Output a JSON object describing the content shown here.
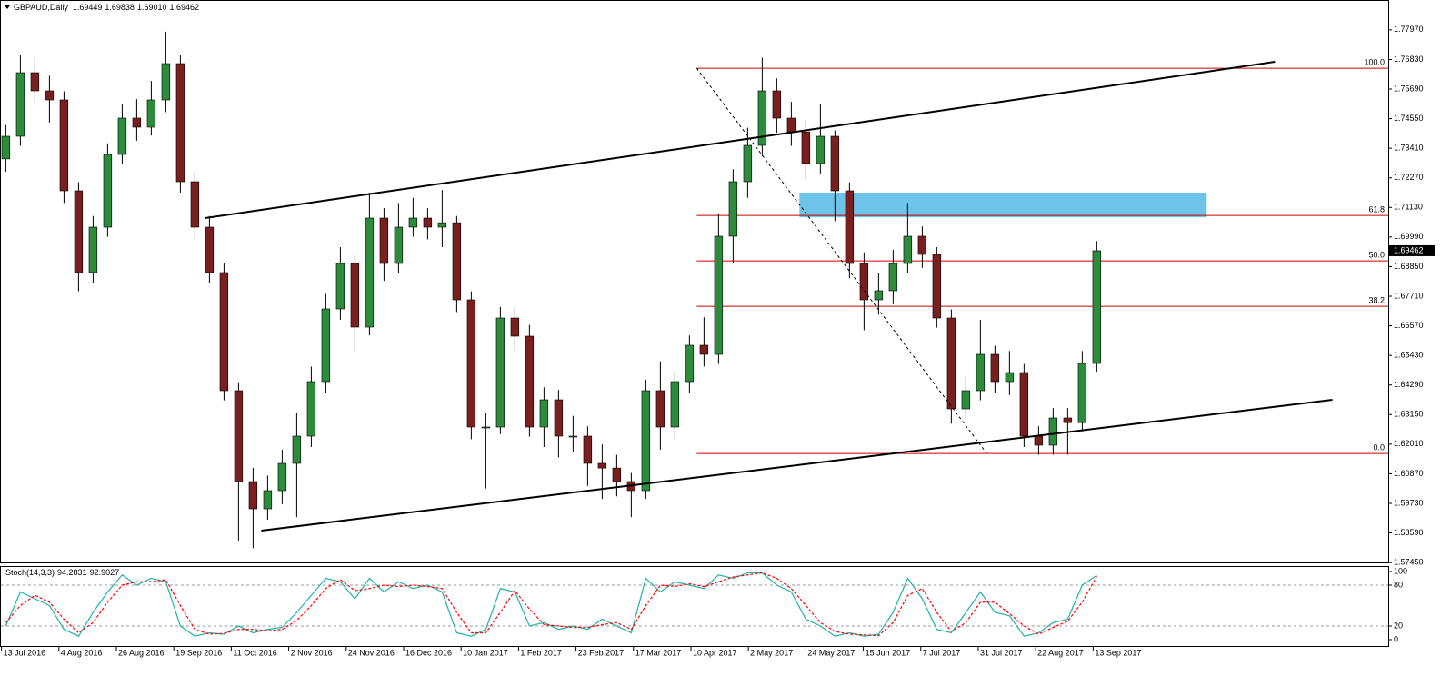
{
  "chart_data": [
    {
      "type": "candlestick",
      "title": "GBPAUD,Daily",
      "header_values": [
        "1.69449",
        "1.69838",
        "1.69010",
        "1.69462"
      ],
      "up_color": "#2d8b3c",
      "down_color": "#7a1f1f",
      "candles": [
        [
          1.73,
          1.743,
          1.725,
          1.7387
        ],
        [
          1.7387,
          1.77,
          1.735,
          1.7632
        ],
        [
          1.7632,
          1.769,
          1.751,
          1.7562
        ],
        [
          1.7562,
          1.762,
          1.744,
          1.7527
        ],
        [
          1.7527,
          1.756,
          1.713,
          1.7177
        ],
        [
          1.7177,
          1.721,
          1.679,
          1.6862
        ],
        [
          1.6862,
          1.708,
          1.682,
          1.7037
        ],
        [
          1.7037,
          1.736,
          1.7,
          1.7317
        ],
        [
          1.7317,
          1.751,
          1.728,
          1.7457
        ],
        [
          1.7457,
          1.753,
          1.737,
          1.7422
        ],
        [
          1.7422,
          1.76,
          1.739,
          1.7527
        ],
        [
          1.7527,
          1.779,
          1.748,
          1.7667
        ],
        [
          1.7667,
          1.77,
          1.717,
          1.7212
        ],
        [
          1.7212,
          1.725,
          1.699,
          1.7037
        ],
        [
          1.7037,
          1.708,
          1.682,
          1.6862
        ],
        [
          1.6862,
          1.69,
          1.637,
          1.6407
        ],
        [
          1.6407,
          1.644,
          1.583,
          1.6057
        ],
        [
          1.6057,
          1.611,
          1.58,
          1.5952
        ],
        [
          1.5952,
          1.608,
          1.591,
          1.6022
        ],
        [
          1.6022,
          1.618,
          1.597,
          1.6127
        ],
        [
          1.6127,
          1.632,
          1.592,
          1.6232
        ],
        [
          1.6232,
          1.65,
          1.619,
          1.6442
        ],
        [
          1.6442,
          1.678,
          1.64,
          1.6722
        ],
        [
          1.6722,
          1.696,
          1.668,
          1.6897
        ],
        [
          1.6897,
          1.693,
          1.656,
          1.6652
        ],
        [
          1.6652,
          1.717,
          1.662,
          1.7072
        ],
        [
          1.7072,
          1.711,
          1.683,
          1.6897
        ],
        [
          1.6897,
          1.713,
          1.686,
          1.7037
        ],
        [
          1.7037,
          1.715,
          1.7,
          1.7072
        ],
        [
          1.7072,
          1.711,
          1.699,
          1.7037
        ],
        [
          1.7037,
          1.718,
          1.696,
          1.7054
        ],
        [
          1.7054,
          1.708,
          1.671,
          1.6757
        ],
        [
          1.6757,
          1.679,
          1.622,
          1.6267
        ],
        [
          1.6267,
          1.632,
          1.603,
          1.6267
        ],
        [
          1.6267,
          1.673,
          1.624,
          1.6687
        ],
        [
          1.6687,
          1.673,
          1.656,
          1.6617
        ],
        [
          1.6617,
          1.666,
          1.623,
          1.6267
        ],
        [
          1.6267,
          1.642,
          1.619,
          1.6372
        ],
        [
          1.6372,
          1.641,
          1.615,
          1.6232
        ],
        [
          1.6232,
          1.631,
          1.617,
          1.6232
        ],
        [
          1.6232,
          1.627,
          1.604,
          1.6127
        ],
        [
          1.6127,
          1.62,
          1.599,
          1.6109
        ],
        [
          1.6109,
          1.616,
          1.6,
          1.6057
        ],
        [
          1.6057,
          1.609,
          1.592,
          1.6022
        ],
        [
          1.6022,
          1.645,
          1.599,
          1.6407
        ],
        [
          1.6407,
          1.652,
          1.618,
          1.6267
        ],
        [
          1.6267,
          1.648,
          1.622,
          1.6442
        ],
        [
          1.6442,
          1.662,
          1.64,
          1.6582
        ],
        [
          1.6582,
          1.669,
          1.65,
          1.6547
        ],
        [
          1.6547,
          1.709,
          1.651,
          1.7002
        ],
        [
          1.7002,
          1.726,
          1.69,
          1.7212
        ],
        [
          1.7212,
          1.742,
          1.715,
          1.7352
        ],
        [
          1.7352,
          1.769,
          1.731,
          1.7562
        ],
        [
          1.7562,
          1.761,
          1.74,
          1.7457
        ],
        [
          1.7457,
          1.752,
          1.735,
          1.7404
        ],
        [
          1.7404,
          1.745,
          1.722,
          1.7282
        ],
        [
          1.7282,
          1.751,
          1.724,
          1.7387
        ],
        [
          1.7387,
          1.741,
          1.706,
          1.7177
        ],
        [
          1.7177,
          1.721,
          1.684,
          1.6897
        ],
        [
          1.6897,
          1.694,
          1.664,
          1.6757
        ],
        [
          1.6757,
          1.686,
          1.67,
          1.6792
        ],
        [
          1.6792,
          1.695,
          1.674,
          1.6897
        ],
        [
          1.6897,
          1.713,
          1.686,
          1.7002
        ],
        [
          1.7002,
          1.704,
          1.688,
          1.6932
        ],
        [
          1.6932,
          1.696,
          1.665,
          1.6687
        ],
        [
          1.6687,
          1.672,
          1.628,
          1.6337
        ],
        [
          1.6337,
          1.646,
          1.63,
          1.6407
        ],
        [
          1.6407,
          1.668,
          1.637,
          1.6547
        ],
        [
          1.6547,
          1.658,
          1.64,
          1.6442
        ],
        [
          1.6442,
          1.656,
          1.639,
          1.6477
        ],
        [
          1.6477,
          1.651,
          1.619,
          1.6232
        ],
        [
          1.6232,
          1.627,
          1.616,
          1.6197
        ],
        [
          1.6197,
          1.634,
          1.616,
          1.6302
        ],
        [
          1.6302,
          1.634,
          1.616,
          1.6284
        ],
        [
          1.6284,
          1.656,
          1.625,
          1.6512
        ],
        [
          1.6512,
          1.69838,
          1.648,
          1.69462
        ]
      ],
      "xlim": [
        -0.4,
        95.04
      ],
      "ylim": [
        1.5742,
        1.7912
      ],
      "yticks": [
        {
          "value": 1.5745,
          "label": "1.57450"
        },
        {
          "value": 1.5859,
          "label": "1.58590"
        },
        {
          "value": 1.5973,
          "label": "1.59730"
        },
        {
          "value": 1.6087,
          "label": "1.60870"
        },
        {
          "value": 1.6201,
          "label": "1.62010"
        },
        {
          "value": 1.6315,
          "label": "1.63150"
        },
        {
          "value": 1.6429,
          "label": "1.64290"
        },
        {
          "value": 1.6543,
          "label": "1.65430"
        },
        {
          "value": 1.6657,
          "label": "1.66570"
        },
        {
          "value": 1.6771,
          "label": "1.67710"
        },
        {
          "value": 1.6885,
          "label": "1.68850"
        },
        {
          "value": 1.6999,
          "label": "1.69990"
        },
        {
          "value": 1.7113,
          "label": "1.71130"
        },
        {
          "value": 1.7227,
          "label": "1.72270"
        },
        {
          "value": 1.7341,
          "label": "1.73410"
        },
        {
          "value": 1.7455,
          "label": "1.74550"
        },
        {
          "value": 1.7569,
          "label": "1.75690"
        },
        {
          "value": 1.7683,
          "label": "1.76830"
        },
        {
          "value": 1.7797,
          "label": "1.77970"
        }
      ],
      "xticks": [
        {
          "value": -0.3,
          "label": "13 Jul 2016"
        },
        {
          "value": 3.65,
          "label": "4 Aug 2016"
        },
        {
          "value": 7.6,
          "label": "26 Aug 2016"
        },
        {
          "value": 11.55,
          "label": "19 Sep 2016"
        },
        {
          "value": 15.5,
          "label": "11 Oct 2016"
        },
        {
          "value": 19.45,
          "label": "2 Nov 2016"
        },
        {
          "value": 23.4,
          "label": "24 Nov 2016"
        },
        {
          "value": 27.35,
          "label": "16 Dec 2016"
        },
        {
          "value": 31.3,
          "label": "10 Jan 2017"
        },
        {
          "value": 35.25,
          "label": "1 Feb 2017"
        },
        {
          "value": 39.2,
          "label": "23 Feb 2017"
        },
        {
          "value": 43.15,
          "label": "17 Mar 2017"
        },
        {
          "value": 47.1,
          "label": "10 Apr 2017"
        },
        {
          "value": 51.05,
          "label": "2 May 2017"
        },
        {
          "value": 55.0,
          "label": "24 May 2017"
        },
        {
          "value": 58.95,
          "label": "15 Jun 2017"
        },
        {
          "value": 62.9,
          "label": "7 Jul 2017"
        },
        {
          "value": 66.85,
          "label": "31 Jul 2017"
        },
        {
          "value": 70.8,
          "label": "22 Aug 2017"
        },
        {
          "value": 74.75,
          "label": "13 Sep 2017"
        }
      ],
      "last_price": {
        "value": 1.69462,
        "label": "1.69462"
      },
      "fibonacci": {
        "color": "#cc0000",
        "x_start": 47.5,
        "levels": [
          {
            "label": "100.0",
            "price": 1.7649
          },
          {
            "label": "61.8",
            "price": 1.7082
          },
          {
            "label": "50.0",
            "price": 1.6907
          },
          {
            "label": "38.2",
            "price": 1.6732
          },
          {
            "label": "0.0",
            "price": 1.6165
          }
        ]
      },
      "trendlines": [
        {
          "x": [
            13.7,
            87.25
          ],
          "y": [
            1.7072,
            1.7674
          ]
        },
        {
          "x": [
            17.56,
            91.2
          ],
          "y": [
            1.5868,
            1.6372
          ]
        }
      ],
      "diagonal": {
        "x": [
          47.5,
          67.44
        ],
        "y": [
          1.7649,
          1.6165
        ]
      },
      "zone": {
        "color": "#6ec3e8",
        "x": [
          54.56,
          82.56
        ],
        "y": [
          1.717,
          1.7075
        ]
      }
    },
    {
      "type": "line",
      "title": "Stoch(14,3,3)",
      "ylim": [
        -10.7,
        108
      ],
      "yticks": [
        0,
        20,
        80,
        100
      ],
      "levels": [
        20,
        80
      ],
      "series": [
        {
          "color": "#20b2aa",
          "values": [
            20,
            70,
            60,
            50,
            15,
            5,
            40,
            70,
            95,
            80,
            90,
            85,
            20,
            5,
            10,
            8,
            20,
            10,
            15,
            18,
            40,
            65,
            90,
            85,
            60,
            90,
            70,
            85,
            75,
            80,
            70,
            10,
            5,
            15,
            75,
            70,
            20,
            25,
            15,
            20,
            15,
            30,
            20,
            10,
            90,
            70,
            85,
            80,
            75,
            95,
            90,
            98,
            98,
            80,
            70,
            30,
            20,
            5,
            10,
            5,
            8,
            40,
            90,
            60,
            15,
            10,
            40,
            70,
            40,
            35,
            5,
            10,
            25,
            30,
            80,
            94.2831
          ]
        },
        {
          "color": "#ff0000",
          "dashed": true,
          "values": [
            25,
            50,
            65,
            55,
            30,
            10,
            25,
            55,
            80,
            85,
            85,
            88,
            50,
            15,
            8,
            9,
            15,
            15,
            13,
            15,
            28,
            50,
            75,
            88,
            72,
            75,
            80,
            78,
            80,
            78,
            75,
            40,
            10,
            10,
            40,
            72,
            45,
            22,
            20,
            18,
            18,
            22,
            25,
            15,
            50,
            80,
            78,
            82,
            78,
            85,
            92,
            95,
            98,
            90,
            75,
            50,
            25,
            12,
            8,
            7,
            6,
            25,
            65,
            75,
            40,
            12,
            25,
            55,
            55,
            38,
            20,
            8,
            18,
            27,
            55,
            92.9027
          ]
        }
      ]
    }
  ]
}
